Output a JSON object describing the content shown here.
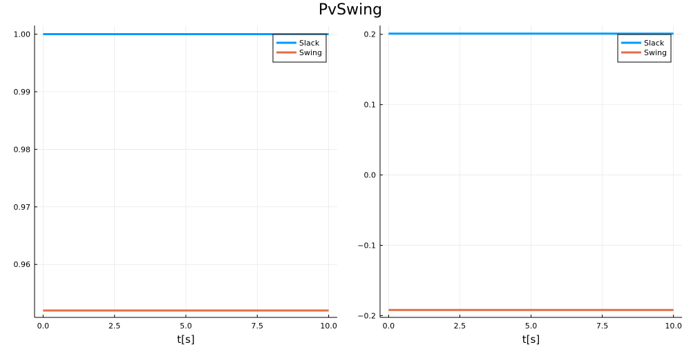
{
  "figure": {
    "title": "PvSwing"
  },
  "chart_data": [
    {
      "type": "line",
      "title": "",
      "xlabel": "t[s]",
      "ylabel": "",
      "xlim": [
        -0.3,
        10.3
      ],
      "ylim": [
        0.9508,
        1.0015
      ],
      "xticks": [
        0.0,
        2.5,
        5.0,
        7.5,
        10.0
      ],
      "xtick_labels": [
        "0.0",
        "2.5",
        "5.0",
        "7.5",
        "10.0"
      ],
      "yticks": [
        0.96,
        0.97,
        0.98,
        0.99,
        1.0
      ],
      "ytick_labels": [
        "0.96",
        "0.97",
        "0.98",
        "0.99",
        "1.00"
      ],
      "grid": true,
      "legend_position": "top-right",
      "series": [
        {
          "name": "Slack",
          "color": "#009AFA",
          "x": [
            0,
            10
          ],
          "y": [
            1.0,
            1.0
          ]
        },
        {
          "name": "Swing",
          "color": "#E26F46",
          "x": [
            0,
            10
          ],
          "y": [
            0.952,
            0.952
          ]
        }
      ]
    },
    {
      "type": "line",
      "title": "",
      "xlabel": "t[s]",
      "ylabel": "",
      "xlim": [
        -0.3,
        10.3
      ],
      "ylim": [
        -0.2025,
        0.2125
      ],
      "xticks": [
        0.0,
        2.5,
        5.0,
        7.5,
        10.0
      ],
      "xtick_labels": [
        "0.0",
        "2.5",
        "5.0",
        "7.5",
        "10.0"
      ],
      "yticks": [
        -0.2,
        -0.1,
        0.0,
        0.1,
        0.2
      ],
      "ytick_labels": [
        "−0.2",
        "−0.1",
        "0.0",
        "0.1",
        "0.2"
      ],
      "grid": true,
      "legend_position": "top-right",
      "series": [
        {
          "name": "Slack",
          "color": "#009AFA",
          "x": [
            0,
            10
          ],
          "y": [
            0.201,
            0.201
          ]
        },
        {
          "name": "Swing",
          "color": "#E26F46",
          "x": [
            0,
            10
          ],
          "y": [
            -0.192,
            -0.192
          ]
        }
      ]
    }
  ]
}
